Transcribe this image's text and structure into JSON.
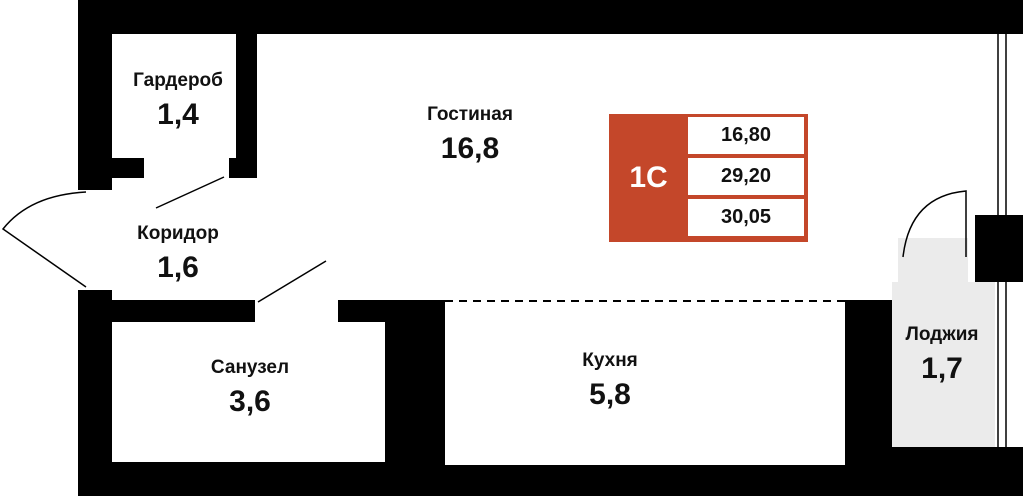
{
  "colors": {
    "wall": "#000000",
    "floor": "#ffffff",
    "loggia": "#ebebeb",
    "badge": "#c4472a"
  },
  "rooms": [
    {
      "name": "Гардероб",
      "area": "1,4"
    },
    {
      "name": "Гостиная",
      "area": "16,8"
    },
    {
      "name": "Коридор",
      "area": "1,6"
    },
    {
      "name": "Санузел",
      "area": "3,6"
    },
    {
      "name": "Кухня",
      "area": "5,8"
    },
    {
      "name": "Лоджия",
      "area": "1,7"
    }
  ],
  "badge": {
    "type": "1С",
    "values": [
      "16,80",
      "29,20",
      "30,05"
    ]
  }
}
